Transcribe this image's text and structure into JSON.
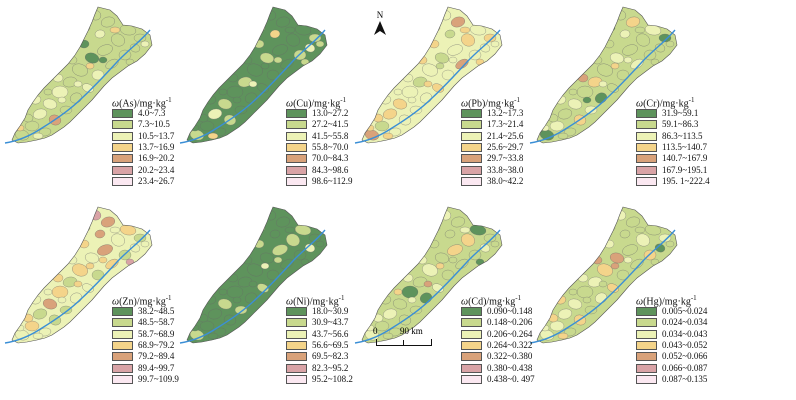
{
  "maps": [
    {
      "title_sym": "ω",
      "title_text": "(As)/mg·kg",
      "title_exp": "-1",
      "dominant": 1,
      "colors": [
        "#5e935c",
        "#c8d98e",
        "#ecf2b6",
        "#f4d48a",
        "#d9a27a",
        "#d9a3a6",
        "#fbe8f1"
      ],
      "ranges": [
        "4.0~7.3",
        "7.3~10.5",
        "10.5~13.7",
        "13.7~16.9",
        "16.9~20.2",
        "20.2~23.4",
        "23.4~26.7"
      ]
    },
    {
      "title_sym": "ω",
      "title_text": "(Cu)/mg·kg",
      "title_exp": "-1",
      "dominant": 0,
      "colors": [
        "#5e935c",
        "#c8d98e",
        "#ecf2b6",
        "#f4d48a",
        "#d9a27a",
        "#d9a3a6",
        "#fbe8f1"
      ],
      "ranges": [
        "13.0~27.2",
        "27.2~41.5",
        "41.5~55.8",
        "55.8~70.0",
        "70.0~84.3",
        "84.3~98.6",
        "98.6~112.9"
      ]
    },
    {
      "title_sym": "ω",
      "title_text": "(Pb)/mg·kg",
      "title_exp": "-1",
      "dominant": 2,
      "colors": [
        "#5e935c",
        "#c8d98e",
        "#ecf2b6",
        "#f4d48a",
        "#d9a27a",
        "#d9a3a6",
        "#fbe8f1"
      ],
      "ranges": [
        "13.2~17.3",
        "17.3~21.4",
        "21.4~25.6",
        "25.6~29.7",
        "29.7~33.8",
        "33.8~38.0",
        "38.0~42.2"
      ]
    },
    {
      "title_sym": "ω",
      "title_text": "(Cr)/mg·kg",
      "title_exp": "-1",
      "dominant": 1,
      "colors": [
        "#5e935c",
        "#c8d98e",
        "#ecf2b6",
        "#f4d48a",
        "#d9a27a",
        "#d9a3a6",
        "#fbe8f1"
      ],
      "ranges": [
        "31.9~59.1",
        "59.1~86.3",
        "86.3~113.5",
        "113.5~140.7",
        "140.7~167.9",
        "167.9~195.1",
        "195. 1~222.4"
      ]
    },
    {
      "title_sym": "ω",
      "title_text": "(Zn)/mg·kg",
      "title_exp": "-1",
      "dominant": 2,
      "colors": [
        "#5e935c",
        "#c8d98e",
        "#ecf2b6",
        "#f4d48a",
        "#d9a27a",
        "#d9a3a6",
        "#fbe8f1"
      ],
      "ranges": [
        "38.2~48.5",
        "48.5~58.7",
        "58.7~68.9",
        "68.9~79.2",
        "79.2~89.4",
        "89.4~99.7",
        "99.7~109.9"
      ]
    },
    {
      "title_sym": "ω",
      "title_text": "(Ni)/mg·kg",
      "title_exp": "-1",
      "dominant": 0,
      "colors": [
        "#5e935c",
        "#c8d98e",
        "#ecf2b6",
        "#f4d48a",
        "#d9a27a",
        "#d9a3a6",
        "#fbe8f1"
      ],
      "ranges": [
        "18.0~30.9",
        "30.9~43.7",
        "43.7~56.6",
        "56.6~69.5",
        "69.5~82.3",
        "82.3~95.2",
        "95.2~108.2"
      ]
    },
    {
      "title_sym": "ω",
      "title_text": "(Cd)/mg·kg",
      "title_exp": "-1",
      "dominant": 1,
      "colors": [
        "#5e935c",
        "#c8d98e",
        "#ecf2b6",
        "#f4d48a",
        "#d9a27a",
        "#d9a3a6",
        "#fbe8f1"
      ],
      "ranges": [
        "0.090~0.148",
        "0.148~0.206",
        "0.206~0.264",
        "0.264~0.322",
        "0.322~0.380",
        "0.380~0.438",
        "0.438~0. 497"
      ]
    },
    {
      "title_sym": "ω",
      "title_text": "(Hg)/mg·kg",
      "title_exp": "-1",
      "dominant": 1,
      "colors": [
        "#5e935c",
        "#c8d98e",
        "#ecf2b6",
        "#f4d48a",
        "#d9a27a",
        "#d9a3a6",
        "#fbe8f1"
      ],
      "ranges": [
        "0.005~0.024",
        "0.024~0.034",
        "0.034~0.043",
        "0.043~0.052",
        "0.052~0.066",
        "0.066~0.087",
        "0.087~0.135"
      ]
    }
  ],
  "river_color": "#3b8fd6",
  "north_label": "N",
  "scale": {
    "start": "0",
    "end": "90 km"
  }
}
